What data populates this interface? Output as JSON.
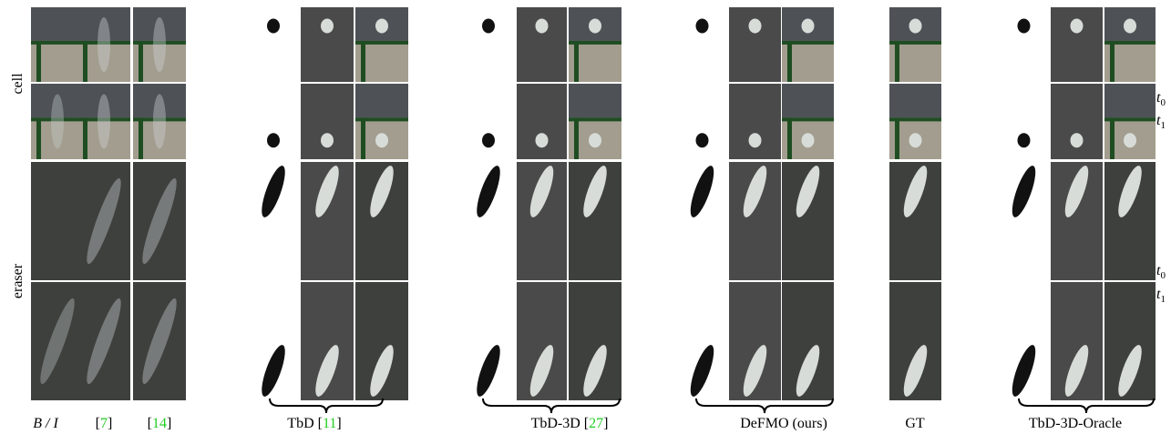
{
  "rows": [
    {
      "label": "cell"
    },
    {
      "label": "eraser"
    }
  ],
  "time_labels": [
    {
      "symbol": "t",
      "subscript": "0"
    },
    {
      "symbol": "t",
      "subscript": "1"
    },
    {
      "symbol": "t",
      "subscript": "0"
    },
    {
      "symbol": "t",
      "subscript": "1"
    }
  ],
  "columns": [
    {
      "prefix": "B / I"
    },
    {
      "prefix": "[",
      "ref": "7",
      "suffix": "]"
    },
    {
      "prefix": "[",
      "ref": "14",
      "suffix": "]"
    },
    {
      "prefix": "TbD [",
      "ref": "11",
      "suffix": "]"
    },
    {
      "prefix": "TbD-3D [",
      "ref": "27",
      "suffix": "]"
    },
    {
      "prefix": "DeFMO (ours)"
    },
    {
      "prefix": "GT"
    },
    {
      "prefix": "TbD-3D-Oracle"
    }
  ]
}
